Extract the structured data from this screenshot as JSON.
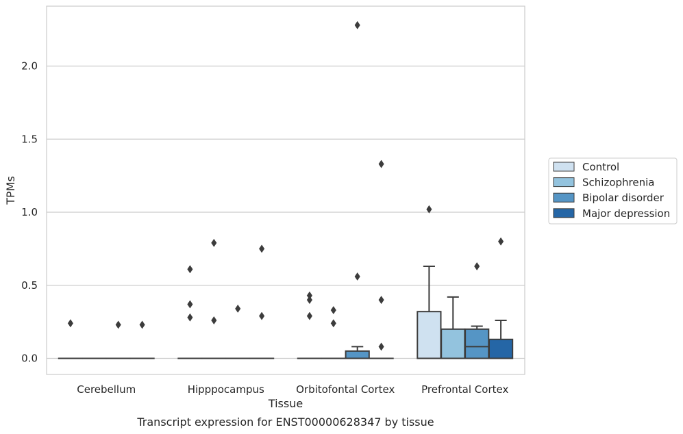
{
  "caption": "Transcript expression for ENST00000628347 by tissue",
  "colors": {
    "Control": "#cfe1f0",
    "Schizophrenia": "#93c3de",
    "Bipolar disorder": "#5595c5",
    "Major depression": "#2566a6",
    "edge": "#3c3c3c",
    "grid": "#cccccc",
    "frame": "#cccccc"
  },
  "chart_data": {
    "type": "box",
    "title": "",
    "xlabel": "Tissue",
    "ylabel": "TPMs",
    "ylim": [
      -0.11,
      2.41
    ],
    "yticks": [
      0.0,
      0.5,
      1.0,
      1.5,
      2.0
    ],
    "ytick_labels": [
      "0.0",
      "0.5",
      "1.0",
      "1.5",
      "2.0"
    ],
    "grid": "horizontal",
    "legend_position": "right",
    "categories": [
      "Cerebellum",
      "Hipppocampus",
      "Orbitofontal Cortex",
      "Prefrontal Cortex"
    ],
    "series": [
      {
        "name": "Control",
        "boxes": [
          {
            "q1": 0,
            "median": 0,
            "q3": 0,
            "whislo": 0,
            "whishi": 0,
            "fliers": [
              0.24
            ]
          },
          {
            "q1": 0,
            "median": 0,
            "q3": 0,
            "whislo": 0,
            "whishi": 0,
            "fliers": [
              0.61,
              0.37,
              0.28
            ]
          },
          {
            "q1": 0,
            "median": 0,
            "q3": 0,
            "whislo": 0,
            "whishi": 0,
            "fliers": [
              0.43,
              0.4,
              0.29
            ]
          },
          {
            "q1": 0,
            "median": 0,
            "q3": 0.32,
            "whislo": 0,
            "whishi": 0.63,
            "fliers": [
              1.02
            ]
          }
        ]
      },
      {
        "name": "Schizophrenia",
        "boxes": [
          {
            "q1": 0,
            "median": 0,
            "q3": 0,
            "whislo": 0,
            "whishi": 0,
            "fliers": []
          },
          {
            "q1": 0,
            "median": 0,
            "q3": 0,
            "whislo": 0,
            "whishi": 0,
            "fliers": [
              0.79,
              0.26
            ]
          },
          {
            "q1": 0,
            "median": 0,
            "q3": 0,
            "whislo": 0,
            "whishi": 0,
            "fliers": [
              0.33,
              0.24
            ]
          },
          {
            "q1": 0,
            "median": 0,
            "q3": 0.2,
            "whislo": 0,
            "whishi": 0.42,
            "fliers": []
          }
        ]
      },
      {
        "name": "Bipolar disorder",
        "boxes": [
          {
            "q1": 0,
            "median": 0,
            "q3": 0,
            "whislo": 0,
            "whishi": 0,
            "fliers": [
              0.23
            ]
          },
          {
            "q1": 0,
            "median": 0,
            "q3": 0,
            "whislo": 0,
            "whishi": 0,
            "fliers": [
              0.34
            ]
          },
          {
            "q1": 0,
            "median": 0,
            "q3": 0.05,
            "whislo": 0,
            "whishi": 0.08,
            "fliers": [
              2.28,
              0.56
            ]
          },
          {
            "q1": 0,
            "median": 0.08,
            "q3": 0.2,
            "whislo": 0,
            "whishi": 0.22,
            "fliers": [
              0.63
            ]
          }
        ]
      },
      {
        "name": "Major depression",
        "boxes": [
          {
            "q1": 0,
            "median": 0,
            "q3": 0,
            "whislo": 0,
            "whishi": 0,
            "fliers": [
              0.23
            ]
          },
          {
            "q1": 0,
            "median": 0,
            "q3": 0,
            "whislo": 0,
            "whishi": 0,
            "fliers": [
              0.75,
              0.29
            ]
          },
          {
            "q1": 0,
            "median": 0,
            "q3": 0,
            "whislo": 0,
            "whishi": 0,
            "fliers": [
              1.33,
              0.4,
              0.08
            ]
          },
          {
            "q1": 0,
            "median": 0,
            "q3": 0.13,
            "whislo": 0,
            "whishi": 0.26,
            "fliers": [
              0.8
            ]
          }
        ]
      }
    ]
  }
}
